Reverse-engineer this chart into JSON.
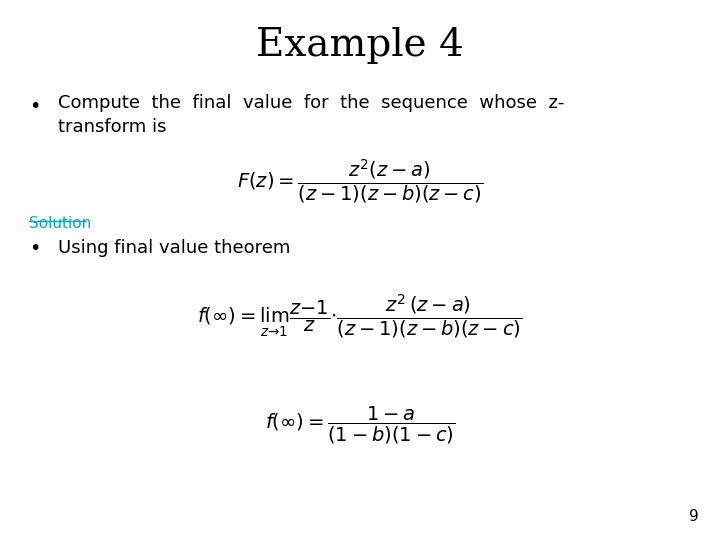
{
  "title": "Example 4",
  "title_fontsize": 28,
  "title_fontfamily": "DejaVu Serif",
  "background_color": "#ffffff",
  "text_color": "#000000",
  "solution_color": "#00aacc",
  "solution_label": "Solution",
  "page_number": "9"
}
